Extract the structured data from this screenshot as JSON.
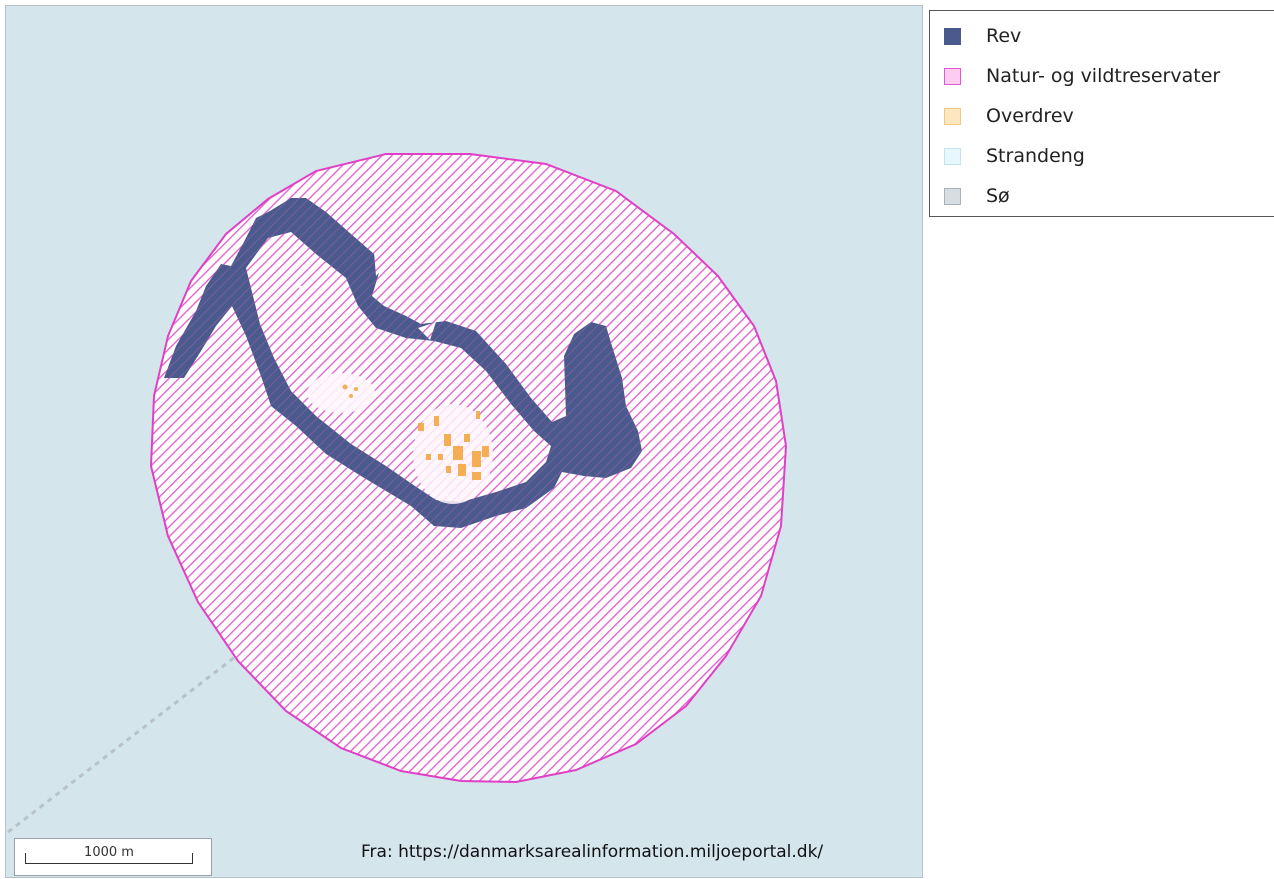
{
  "legend": {
    "items": [
      {
        "label": "Rev",
        "color": "#4a5a8c",
        "border": "#4a5a8c",
        "icon": "rev-swatch"
      },
      {
        "label": "Natur- og vildtreservater",
        "color": "#fccdf3",
        "border": "#e259cd",
        "icon": "reservat-swatch"
      },
      {
        "label": "Overdrev",
        "color": "#fde6c0",
        "border": "#efc983",
        "icon": "overdrev-swatch"
      },
      {
        "label": "Strandeng",
        "color": "#e7f7fe",
        "border": "#c5e2ee",
        "icon": "strandeng-swatch"
      },
      {
        "label": "Sø",
        "color": "#d6dde3",
        "border": "#a9b2ba",
        "icon": "so-swatch"
      }
    ]
  },
  "map": {
    "water_color": "#d4e5ec",
    "reserve_stroke": "#e040c6",
    "reef_color": "#4a5a8c",
    "overdrev_color": "#f4a742"
  },
  "scale": {
    "label": "1000 m"
  },
  "source": {
    "text": "Fra: https://danmarksarealinformation.miljoeportal.dk/"
  }
}
